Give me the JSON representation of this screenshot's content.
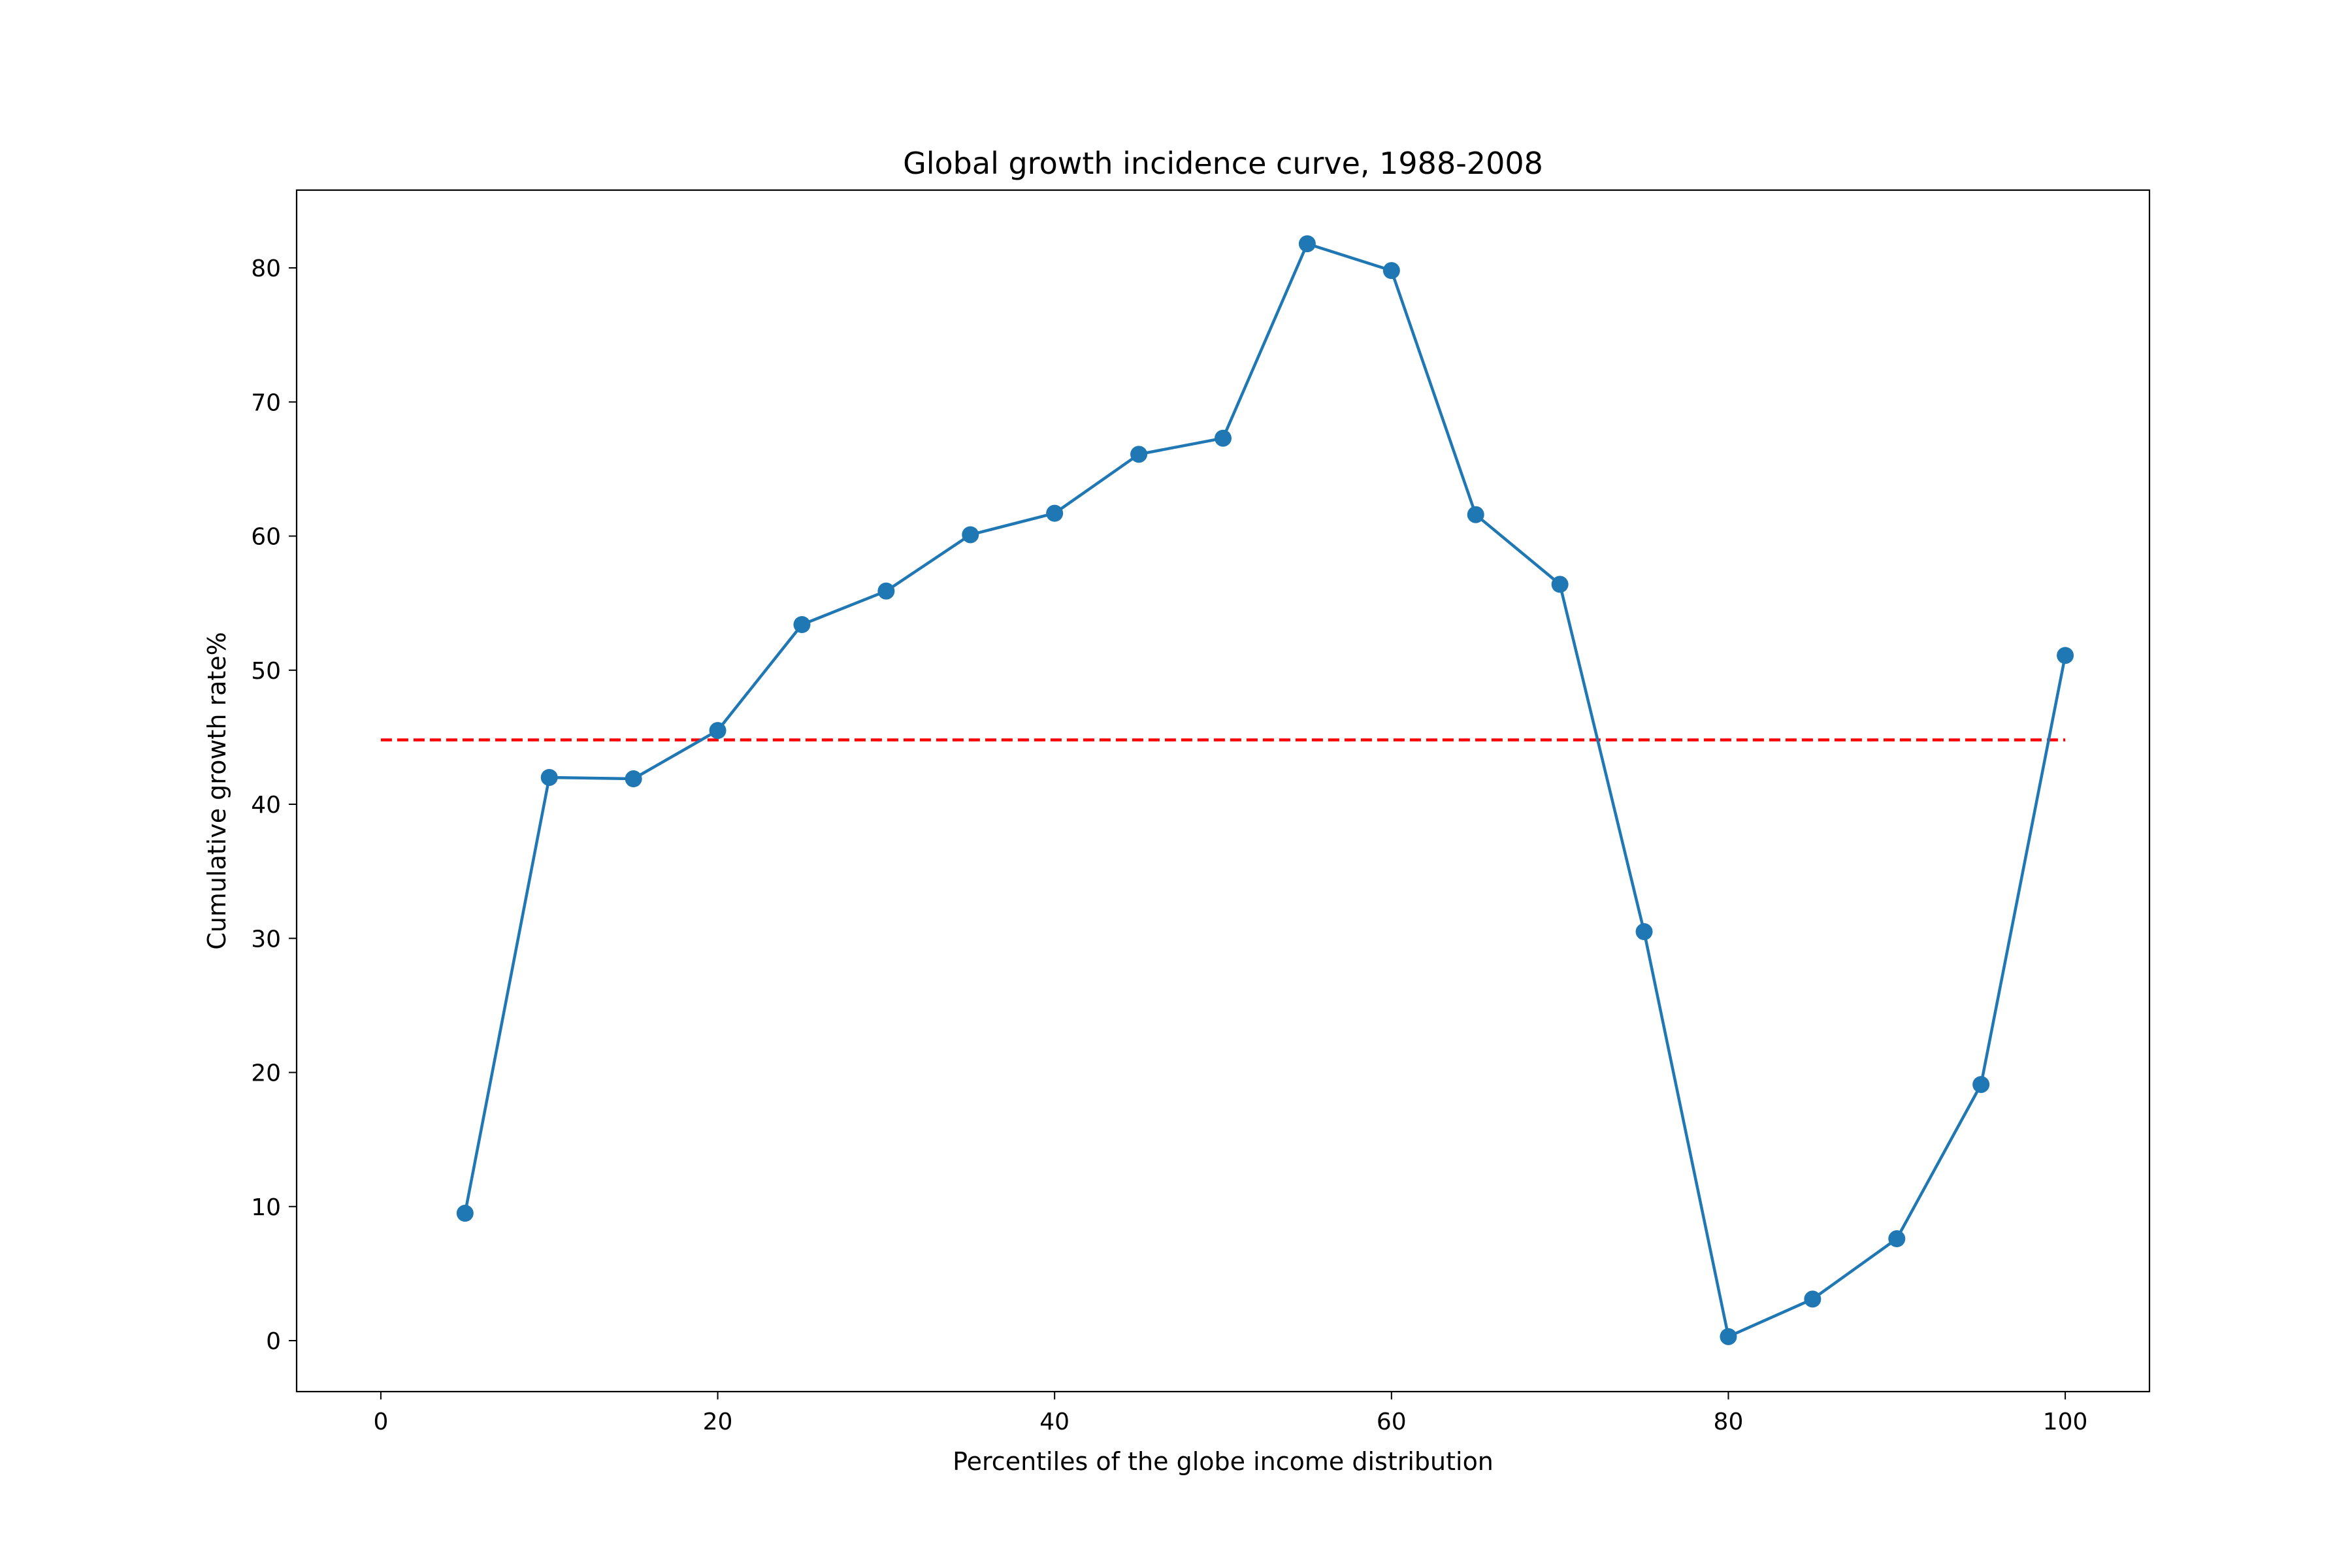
{
  "chart_data": {
    "type": "line",
    "title": "Global growth incidence curve, 1988-2008",
    "xlabel": "Percentiles of the globe income distribution",
    "ylabel": "Cumulative growth rate%",
    "xlim": [
      -5,
      105
    ],
    "ylim": [
      -3.8,
      85.8
    ],
    "x_ticks": [
      0,
      20,
      40,
      60,
      80,
      100
    ],
    "y_ticks": [
      0,
      10,
      20,
      30,
      40,
      50,
      60,
      70,
      80
    ],
    "grid": false,
    "series": [
      {
        "color": "#1f77b4",
        "marker": "circle",
        "x": [
          5,
          10,
          15,
          20,
          25,
          30,
          35,
          40,
          45,
          50,
          55,
          60,
          65,
          70,
          75,
          80,
          85,
          90,
          95,
          100
        ],
        "y": [
          9.5,
          42.0,
          41.9,
          45.5,
          53.4,
          55.9,
          60.1,
          61.7,
          66.1,
          67.3,
          81.8,
          79.8,
          61.6,
          56.4,
          30.5,
          0.3,
          3.1,
          7.6,
          19.1,
          51.1
        ]
      }
    ],
    "reference_lines": [
      {
        "style": "dashed",
        "color": "#ff0000",
        "x": [
          0,
          100
        ],
        "y": [
          44.8,
          44.8
        ]
      }
    ]
  }
}
